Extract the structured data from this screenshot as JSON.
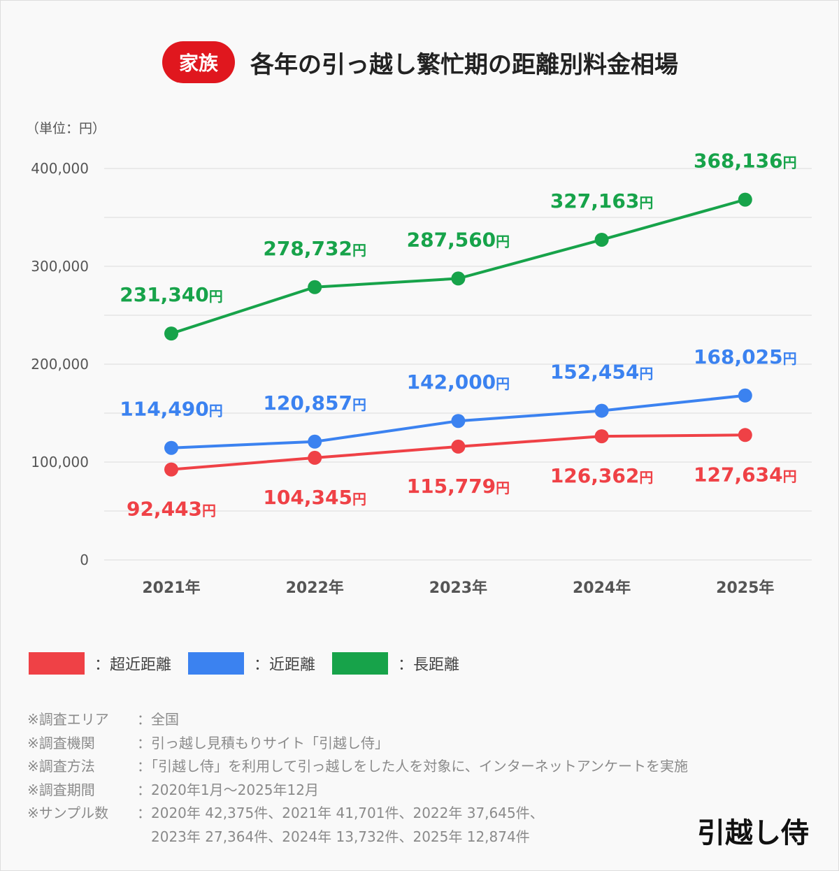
{
  "header": {
    "badge": "家族",
    "title": "各年の引っ越し繁忙期の距離別料金相場"
  },
  "unit_label": "（単位：円）",
  "chart_data": {
    "type": "line",
    "categories": [
      "2021年",
      "2022年",
      "2023年",
      "2024年",
      "2025年"
    ],
    "ylim": [
      0,
      400000
    ],
    "yticks": [
      0,
      100000,
      200000,
      300000,
      400000
    ],
    "ytick_labels": [
      "0",
      "100,000",
      "200,000",
      "300,000",
      "400,000"
    ],
    "grid": true,
    "value_suffix": "円",
    "series": [
      {
        "name": "超近距離",
        "color": "#ef4146",
        "values": [
          92443,
          104345,
          115779,
          126362,
          127634
        ],
        "labels": [
          "92,443",
          "104,345",
          "115,779",
          "126,362",
          "127,634"
        ],
        "label_pos": "below"
      },
      {
        "name": "近距離",
        "color": "#3b82f0",
        "values": [
          114490,
          120857,
          142000,
          152454,
          168025
        ],
        "labels": [
          "114,490",
          "120,857",
          "142,000",
          "152,454",
          "168,025"
        ],
        "label_pos": "above"
      },
      {
        "name": "長距離",
        "color": "#17a34a",
        "values": [
          231340,
          278732,
          287560,
          327163,
          368136
        ],
        "labels": [
          "231,340",
          "278,732",
          "287,560",
          "327,163",
          "368,136"
        ],
        "label_pos": "above"
      }
    ],
    "legend": "bottom-left"
  },
  "legend": [
    {
      "label": "：超近距離"
    },
    {
      "label": "：近距離"
    },
    {
      "label": "：長距離"
    }
  ],
  "notes": [
    {
      "key": "※調査エリア",
      "value": "：全国"
    },
    {
      "key": "※調査機関",
      "value": "：引っ越し見積もりサイト「引越し侍」"
    },
    {
      "key": "※調査方法",
      "value": "：「引越し侍」を利用して引っ越しをした人を対象に、インターネットアンケートを実施"
    },
    {
      "key": "※調査期間",
      "value": "：2020年1月～2025年12月"
    },
    {
      "key": "※サンプル数",
      "value": "：2020年 42,375件、2021年 41,701件、2022年 37,645件、"
    },
    {
      "key": "",
      "value": "　2023年 27,364件、2024年 13,732件、2025年 12,874件"
    }
  ],
  "logo": "引越し侍"
}
